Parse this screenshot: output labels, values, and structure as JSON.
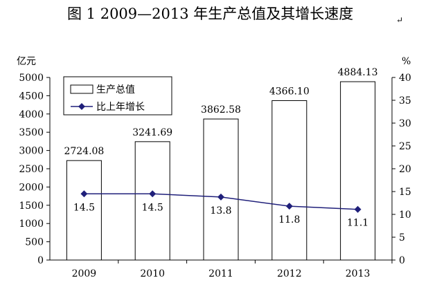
{
  "chart_data": {
    "type": "bar+line",
    "title": "图 1   2009—2013 年生产总值及其增长速度",
    "title_mark": "↵",
    "categories": [
      "2009",
      "2010",
      "2011",
      "2012",
      "2013"
    ],
    "bar_series": {
      "name": "生产总值",
      "values": [
        2724.08,
        3241.69,
        3862.58,
        4366.1,
        4884.13
      ],
      "labels": [
        "2724.08",
        "3241.69",
        "3862.58",
        "4366.10",
        "4884.13"
      ]
    },
    "line_series": {
      "name": "比上年增长",
      "values": [
        14.5,
        14.5,
        13.8,
        11.8,
        11.1
      ],
      "labels": [
        "14.5",
        "14.5",
        "13.8",
        "11.8",
        "11.1"
      ],
      "color": "#1f1f7a"
    },
    "y_left": {
      "unit": "亿元",
      "min": 0,
      "max": 5000,
      "step": 500,
      "ticks": [
        "0",
        "500",
        "1000",
        "1500",
        "2000",
        "2500",
        "3000",
        "3500",
        "4000",
        "4500",
        "5000"
      ]
    },
    "y_right": {
      "unit": "%",
      "min": 0,
      "max": 40,
      "step": 5,
      "ticks": [
        "0",
        "5",
        "10",
        "15",
        "20",
        "25",
        "30",
        "35",
        "40"
      ]
    },
    "legend_position": "top-left",
    "grid": false
  }
}
